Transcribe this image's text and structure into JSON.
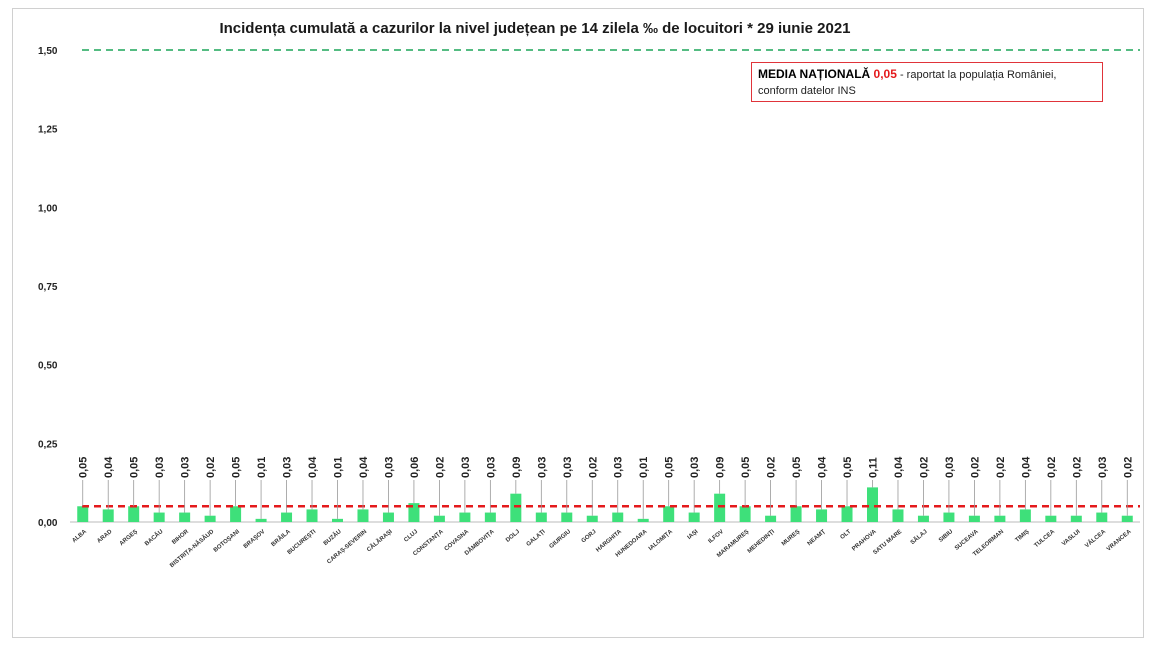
{
  "chart_data": {
    "type": "bar",
    "title": "Incidența cumulată a cazurilor la nivel județean pe 14 zilela ‰ de locuitori *  29 iunie 2021",
    "categories": [
      "ALBA",
      "ARAD",
      "ARGEȘ",
      "BACĂU",
      "BIHOR",
      "BISTRIȚA-NĂSĂUD",
      "BOTOȘANI",
      "BRAȘOV",
      "BRĂILA",
      "BUCUREȘTI",
      "BUZĂU",
      "CARAȘ-SEVERIN",
      "CĂLĂRAȘI",
      "CLUJ",
      "CONSTANȚA",
      "COVASNA",
      "DÂMBOVIȚA",
      "DOLJ",
      "GALAȚI",
      "GIURGIU",
      "GORJ",
      "HARGHITA",
      "HUNEDOARA",
      "IALOMIȚA",
      "IAȘI",
      "ILFOV",
      "MARAMUREȘ",
      "MEHEDINȚI",
      "MUREȘ",
      "NEAMȚ",
      "OLT",
      "PRAHOVA",
      "SATU MARE",
      "SĂLAJ",
      "SIBIU",
      "SUCEAVA",
      "TELEORMAN",
      "TIMIȘ",
      "TULCEA",
      "VASLUI",
      "VÂLCEA",
      "VRANCEA"
    ],
    "values": [
      0.05,
      0.04,
      0.05,
      0.03,
      0.03,
      0.02,
      0.05,
      0.01,
      0.03,
      0.04,
      0.01,
      0.04,
      0.03,
      0.06,
      0.02,
      0.03,
      0.03,
      0.09,
      0.03,
      0.03,
      0.02,
      0.03,
      0.01,
      0.05,
      0.03,
      0.09,
      0.05,
      0.02,
      0.05,
      0.04,
      0.05,
      0.11,
      0.04,
      0.02,
      0.03,
      0.02,
      0.02,
      0.04,
      0.02,
      0.02,
      0.03,
      0.02
    ],
    "data_labels": [
      "0,05",
      "0,04",
      "0,05",
      "0,03",
      "0,03",
      "0,02",
      "0,05",
      "0,01",
      "0,03",
      "0,04",
      "0,01",
      "0,04",
      "0,03",
      "0,06",
      "0,02",
      "0,03",
      "0,03",
      "0,09",
      "0,03",
      "0,03",
      "0,02",
      "0,03",
      "0,01",
      "0,05",
      "0,03",
      "0,09",
      "0,05",
      "0,02",
      "0,05",
      "0,04",
      "0,05",
      "0,11",
      "0,04",
      "0,02",
      "0,03",
      "0,02",
      "0,02",
      "0,04",
      "0,02",
      "0,02",
      "0,03",
      "0,02"
    ],
    "ylim": [
      0,
      1.5
    ],
    "yticks": [
      0,
      0.25,
      0.5,
      0.75,
      1.0,
      1.25,
      1.5
    ],
    "ytick_labels": [
      "0,00",
      "0,25",
      "0,50",
      "0,75",
      "1,00",
      "1,25",
      "1,50"
    ],
    "grid": false,
    "reference_lines": [
      {
        "value": 0.05,
        "color": "#e41a1c",
        "style": "dashed"
      },
      {
        "value": 1.5,
        "color": "#3cb371",
        "style": "dashed"
      }
    ],
    "bar_color": "#3ee07a",
    "annotation": {
      "prefix": "MEDIA NAȚIONALĂ ",
      "value": "0,05",
      "suffix": " - raportat la populația României,",
      "line2": "conform datelor INS"
    }
  }
}
